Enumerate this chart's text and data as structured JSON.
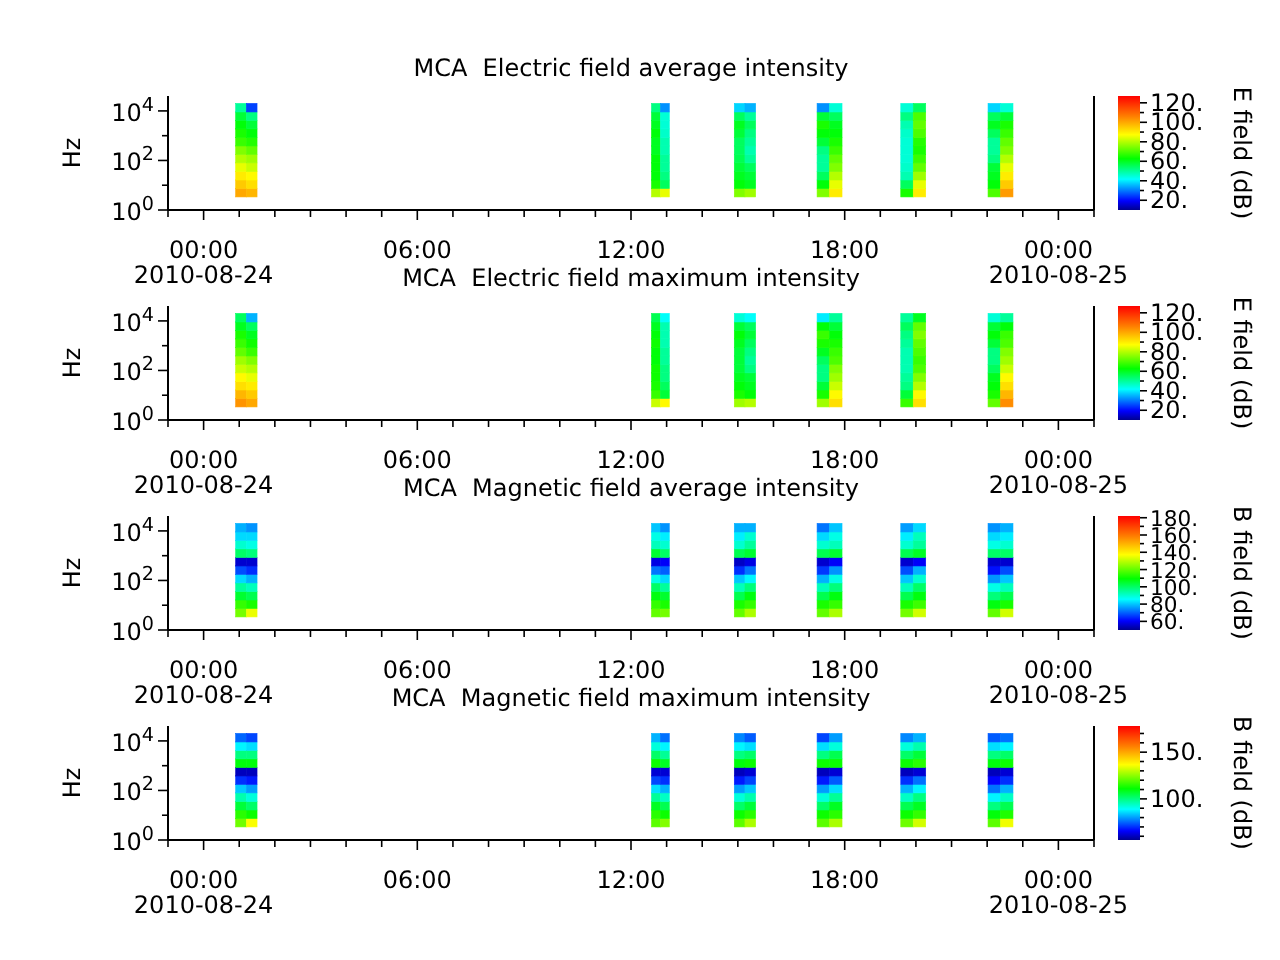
{
  "chart_data": [
    {
      "type": "scatter",
      "title": "MCA  Electric field average intensity",
      "ylabel": "Hz",
      "clabel": "E field (dB)",
      "log": "y",
      "marker": "square",
      "xlim": [
        -1,
        25
      ],
      "xticks": [
        {
          "value": -1,
          "label": null
        },
        {
          "value": 0,
          "label": "00:00\n2010-08-24"
        },
        {
          "value": 1,
          "label": null
        },
        {
          "value": 2,
          "label": null
        },
        {
          "value": 3,
          "label": null
        },
        {
          "value": 4,
          "label": null
        },
        {
          "value": 5,
          "label": null
        },
        {
          "value": 6,
          "label": "06:00"
        },
        {
          "value": 7,
          "label": null
        },
        {
          "value": 8,
          "label": null
        },
        {
          "value": 9,
          "label": null
        },
        {
          "value": 10,
          "label": null
        },
        {
          "value": 11,
          "label": null
        },
        {
          "value": 12,
          "label": "12:00"
        },
        {
          "value": 13,
          "label": null
        },
        {
          "value": 14,
          "label": null
        },
        {
          "value": 15,
          "label": null
        },
        {
          "value": 16,
          "label": null
        },
        {
          "value": 17,
          "label": null
        },
        {
          "value": 18,
          "label": "18:00"
        },
        {
          "value": 19,
          "label": null
        },
        {
          "value": 20,
          "label": null
        },
        {
          "value": 21,
          "label": null
        },
        {
          "value": 22,
          "label": null
        },
        {
          "value": 23,
          "label": null
        },
        {
          "value": 24,
          "label": "00:00\n2010-08-25"
        },
        {
          "value": 25,
          "label": null
        }
      ],
      "ylim": [
        1,
        40000
      ],
      "yticks": [
        {
          "value": 1,
          "label": "10$^{0}$"
        },
        {
          "value": 10,
          "label": null
        },
        {
          "value": 100,
          "label": "10$^{2}$"
        },
        {
          "value": 1000,
          "label": null
        },
        {
          "value": 10000,
          "label": "10$^{4}$"
        }
      ],
      "clim": [
        10,
        127
      ],
      "cticks": [
        {
          "value": 20,
          "label": "20."
        },
        {
          "value": 30,
          "label": null
        },
        {
          "value": 40,
          "label": "40."
        },
        {
          "value": 50,
          "label": null
        },
        {
          "value": 60,
          "label": "60."
        },
        {
          "value": 70,
          "label": null
        },
        {
          "value": 80,
          "label": "80."
        },
        {
          "value": 90,
          "label": null
        },
        {
          "value": 100,
          "label": "100."
        },
        {
          "value": 110,
          "label": null
        },
        {
          "value": 120,
          "label": "120."
        }
      ],
      "x": [
        1.05,
        1.05,
        1.05,
        1.05,
        1.05,
        1.05,
        1.05,
        1.05,
        1.05,
        1.05,
        1.05,
        1.35,
        1.35,
        1.35,
        1.35,
        1.35,
        1.35,
        1.35,
        1.35,
        1.35,
        1.35,
        1.35,
        12.7,
        12.7,
        12.7,
        12.7,
        12.7,
        12.7,
        12.7,
        12.7,
        12.7,
        12.7,
        12.7,
        12.95,
        12.95,
        12.95,
        12.95,
        12.95,
        12.95,
        12.95,
        12.95,
        12.95,
        12.95,
        12.95,
        15.05,
        15.05,
        15.05,
        15.05,
        15.05,
        15.05,
        15.05,
        15.05,
        15.05,
        15.05,
        15.05,
        15.35,
        15.35,
        15.35,
        15.35,
        15.35,
        15.35,
        15.35,
        15.35,
        15.35,
        15.35,
        15.35,
        17.4,
        17.4,
        17.4,
        17.4,
        17.4,
        17.4,
        17.4,
        17.4,
        17.4,
        17.4,
        17.4,
        17.75,
        17.75,
        17.75,
        17.75,
        17.75,
        17.75,
        17.75,
        17.75,
        17.75,
        17.75,
        17.75,
        19.75,
        19.75,
        19.75,
        19.75,
        19.75,
        19.75,
        19.75,
        19.75,
        19.75,
        19.75,
        19.75,
        20.1,
        20.1,
        20.1,
        20.1,
        20.1,
        20.1,
        20.1,
        20.1,
        20.1,
        20.1,
        20.1,
        22.2,
        22.2,
        22.2,
        22.2,
        22.2,
        22.2,
        22.2,
        22.2,
        22.2,
        22.2,
        22.2,
        22.55,
        22.55,
        22.55,
        22.55,
        22.55,
        22.55,
        22.55,
        22.55,
        22.55,
        22.55,
        22.55
      ],
      "values": [
        5,
        11,
        24,
        53,
        120,
        260,
        570,
        1260,
        2800,
        6100,
        13500,
        5,
        11,
        24,
        53,
        120,
        260,
        570,
        1260,
        2800,
        6100,
        13500,
        5,
        11,
        24,
        53,
        120,
        260,
        570,
        1260,
        2800,
        6100,
        13500,
        5,
        11,
        24,
        53,
        120,
        260,
        570,
        1260,
        2800,
        6100,
        13500,
        5,
        11,
        24,
        53,
        120,
        260,
        570,
        1260,
        2800,
        6100,
        13500,
        5,
        11,
        24,
        53,
        120,
        260,
        570,
        1260,
        2800,
        6100,
        13500,
        5,
        11,
        24,
        53,
        120,
        260,
        570,
        1260,
        2800,
        6100,
        13500,
        5,
        11,
        24,
        53,
        120,
        260,
        570,
        1260,
        2800,
        6100,
        13500,
        5,
        11,
        24,
        53,
        120,
        260,
        570,
        1260,
        2800,
        6100,
        13500,
        5,
        11,
        24,
        53,
        120,
        260,
        570,
        1260,
        2800,
        6100,
        13500,
        5,
        11,
        24,
        53,
        120,
        260,
        570,
        1260,
        2800,
        6100,
        13500,
        5,
        11,
        24,
        53,
        120,
        260,
        570,
        1260,
        2800,
        6100,
        13500
      ],
      "cvalues": [
        100,
        95,
        90,
        85,
        80,
        75,
        68,
        65,
        62,
        58,
        50,
        98,
        92,
        88,
        82,
        78,
        72,
        66,
        62,
        58,
        52,
        25,
        80,
        65,
        62,
        62,
        62,
        60,
        60,
        62,
        60,
        58,
        52,
        85,
        55,
        52,
        50,
        50,
        48,
        48,
        46,
        45,
        45,
        32,
        75,
        62,
        60,
        58,
        56,
        55,
        55,
        58,
        60,
        55,
        38,
        78,
        60,
        58,
        55,
        50,
        48,
        50,
        52,
        55,
        50,
        35,
        75,
        62,
        55,
        50,
        50,
        52,
        58,
        62,
        65,
        58,
        32,
        90,
        85,
        80,
        75,
        72,
        68,
        65,
        62,
        60,
        55,
        45,
        65,
        55,
        48,
        46,
        45,
        45,
        45,
        46,
        48,
        52,
        45,
        90,
        85,
        78,
        72,
        68,
        65,
        66,
        70,
        72,
        70,
        55,
        70,
        62,
        60,
        58,
        52,
        50,
        50,
        55,
        60,
        55,
        38,
        102,
        95,
        90,
        85,
        80,
        75,
        72,
        68,
        65,
        58,
        45
      ]
    },
    {
      "type": "scatter",
      "title": "MCA  Electric field maximum intensity",
      "ylabel": "Hz",
      "clabel": "E field (dB)",
      "log": "y",
      "marker": "square",
      "xlim": [
        -1,
        25
      ],
      "xticks": [
        {
          "value": -1,
          "label": null
        },
        {
          "value": 0,
          "label": "00:00\n2010-08-24"
        },
        {
          "value": 1,
          "label": null
        },
        {
          "value": 2,
          "label": null
        },
        {
          "value": 3,
          "label": null
        },
        {
          "value": 4,
          "label": null
        },
        {
          "value": 5,
          "label": null
        },
        {
          "value": 6,
          "label": "06:00"
        },
        {
          "value": 7,
          "label": null
        },
        {
          "value": 8,
          "label": null
        },
        {
          "value": 9,
          "label": null
        },
        {
          "value": 10,
          "label": null
        },
        {
          "value": 11,
          "label": null
        },
        {
          "value": 12,
          "label": "12:00"
        },
        {
          "value": 13,
          "label": null
        },
        {
          "value": 14,
          "label": null
        },
        {
          "value": 15,
          "label": null
        },
        {
          "value": 16,
          "label": null
        },
        {
          "value": 17,
          "label": null
        },
        {
          "value": 18,
          "label": "18:00"
        },
        {
          "value": 19,
          "label": null
        },
        {
          "value": 20,
          "label": null
        },
        {
          "value": 21,
          "label": null
        },
        {
          "value": 22,
          "label": null
        },
        {
          "value": 23,
          "label": null
        },
        {
          "value": 24,
          "label": "00:00\n2010-08-25"
        },
        {
          "value": 25,
          "label": null
        }
      ],
      "ylim": [
        1,
        40000
      ],
      "yticks": [
        {
          "value": 1,
          "label": "10$^{0}$"
        },
        {
          "value": 10,
          "label": null
        },
        {
          "value": 100,
          "label": "10$^{2}$"
        },
        {
          "value": 1000,
          "label": null
        },
        {
          "value": 10000,
          "label": "10$^{4}$"
        }
      ],
      "clim": [
        10,
        127
      ],
      "cticks": [
        {
          "value": 20,
          "label": "20."
        },
        {
          "value": 30,
          "label": null
        },
        {
          "value": 40,
          "label": "40."
        },
        {
          "value": 50,
          "label": null
        },
        {
          "value": 60,
          "label": "60."
        },
        {
          "value": 70,
          "label": null
        },
        {
          "value": 80,
          "label": "80."
        },
        {
          "value": 90,
          "label": null
        },
        {
          "value": 100,
          "label": "100."
        },
        {
          "value": 110,
          "label": null
        },
        {
          "value": 120,
          "label": "120."
        }
      ],
      "x": [
        1.05,
        1.05,
        1.05,
        1.05,
        1.05,
        1.05,
        1.05,
        1.05,
        1.05,
        1.05,
        1.05,
        1.35,
        1.35,
        1.35,
        1.35,
        1.35,
        1.35,
        1.35,
        1.35,
        1.35,
        1.35,
        1.35,
        12.7,
        12.7,
        12.7,
        12.7,
        12.7,
        12.7,
        12.7,
        12.7,
        12.7,
        12.7,
        12.7,
        12.95,
        12.95,
        12.95,
        12.95,
        12.95,
        12.95,
        12.95,
        12.95,
        12.95,
        12.95,
        12.95,
        15.05,
        15.05,
        15.05,
        15.05,
        15.05,
        15.05,
        15.05,
        15.05,
        15.05,
        15.05,
        15.05,
        15.35,
        15.35,
        15.35,
        15.35,
        15.35,
        15.35,
        15.35,
        15.35,
        15.35,
        15.35,
        15.35,
        17.4,
        17.4,
        17.4,
        17.4,
        17.4,
        17.4,
        17.4,
        17.4,
        17.4,
        17.4,
        17.4,
        17.75,
        17.75,
        17.75,
        17.75,
        17.75,
        17.75,
        17.75,
        17.75,
        17.75,
        17.75,
        17.75,
        19.75,
        19.75,
        19.75,
        19.75,
        19.75,
        19.75,
        19.75,
        19.75,
        19.75,
        19.75,
        19.75,
        20.1,
        20.1,
        20.1,
        20.1,
        20.1,
        20.1,
        20.1,
        20.1,
        20.1,
        20.1,
        20.1,
        22.2,
        22.2,
        22.2,
        22.2,
        22.2,
        22.2,
        22.2,
        22.2,
        22.2,
        22.2,
        22.2,
        22.55,
        22.55,
        22.55,
        22.55,
        22.55,
        22.55,
        22.55,
        22.55,
        22.55,
        22.55,
        22.55
      ],
      "values": [
        5,
        11,
        24,
        53,
        120,
        260,
        570,
        1260,
        2800,
        6100,
        13500,
        5,
        11,
        24,
        53,
        120,
        260,
        570,
        1260,
        2800,
        6100,
        13500,
        5,
        11,
        24,
        53,
        120,
        260,
        570,
        1260,
        2800,
        6100,
        13500,
        5,
        11,
        24,
        53,
        120,
        260,
        570,
        1260,
        2800,
        6100,
        13500,
        5,
        11,
        24,
        53,
        120,
        260,
        570,
        1260,
        2800,
        6100,
        13500,
        5,
        11,
        24,
        53,
        120,
        260,
        570,
        1260,
        2800,
        6100,
        13500,
        5,
        11,
        24,
        53,
        120,
        260,
        570,
        1260,
        2800,
        6100,
        13500,
        5,
        11,
        24,
        53,
        120,
        260,
        570,
        1260,
        2800,
        6100,
        13500,
        5,
        11,
        24,
        53,
        120,
        260,
        570,
        1260,
        2800,
        6100,
        13500,
        5,
        11,
        24,
        53,
        120,
        260,
        570,
        1260,
        2800,
        6100,
        13500,
        5,
        11,
        24,
        53,
        120,
        260,
        570,
        1260,
        2800,
        6100,
        13500,
        5,
        11,
        24,
        53,
        120,
        260,
        570,
        1260,
        2800,
        6100,
        13500
      ],
      "cvalues": [
        103,
        98,
        92,
        88,
        82,
        78,
        72,
        68,
        65,
        60,
        55,
        100,
        95,
        90,
        85,
        80,
        75,
        68,
        64,
        60,
        55,
        35,
        82,
        68,
        65,
        64,
        64,
        62,
        62,
        64,
        62,
        60,
        56,
        88,
        58,
        55,
        52,
        52,
        50,
        50,
        48,
        48,
        48,
        42,
        78,
        65,
        62,
        60,
        58,
        58,
        58,
        60,
        62,
        58,
        45,
        80,
        62,
        60,
        58,
        52,
        50,
        52,
        55,
        58,
        55,
        42,
        78,
        65,
        58,
        52,
        52,
        55,
        60,
        65,
        68,
        62,
        40,
        92,
        88,
        82,
        78,
        75,
        70,
        68,
        65,
        62,
        58,
        50,
        68,
        58,
        52,
        50,
        48,
        48,
        48,
        50,
        52,
        55,
        50,
        92,
        88,
        80,
        75,
        70,
        68,
        70,
        72,
        75,
        72,
        60,
        72,
        65,
        62,
        60,
        55,
        52,
        52,
        58,
        62,
        58,
        45,
        104,
        98,
        92,
        88,
        82,
        78,
        75,
        70,
        68,
        62,
        50
      ]
    },
    {
      "type": "scatter",
      "title": "MCA  Magnetic field average intensity",
      "ylabel": "Hz",
      "clabel": "B field (dB)",
      "log": "y",
      "marker": "square",
      "xlim": [
        -1,
        25
      ],
      "xticks": [
        {
          "value": -1,
          "label": null
        },
        {
          "value": 0,
          "label": "00:00\n2010-08-24"
        },
        {
          "value": 1,
          "label": null
        },
        {
          "value": 2,
          "label": null
        },
        {
          "value": 3,
          "label": null
        },
        {
          "value": 4,
          "label": null
        },
        {
          "value": 5,
          "label": null
        },
        {
          "value": 6,
          "label": "06:00"
        },
        {
          "value": 7,
          "label": null
        },
        {
          "value": 8,
          "label": null
        },
        {
          "value": 9,
          "label": null
        },
        {
          "value": 10,
          "label": null
        },
        {
          "value": 11,
          "label": null
        },
        {
          "value": 12,
          "label": "12:00"
        },
        {
          "value": 13,
          "label": null
        },
        {
          "value": 14,
          "label": null
        },
        {
          "value": 15,
          "label": null
        },
        {
          "value": 16,
          "label": null
        },
        {
          "value": 17,
          "label": null
        },
        {
          "value": 18,
          "label": "18:00"
        },
        {
          "value": 19,
          "label": null
        },
        {
          "value": 20,
          "label": null
        },
        {
          "value": 21,
          "label": null
        },
        {
          "value": 22,
          "label": null
        },
        {
          "value": 23,
          "label": null
        },
        {
          "value": 24,
          "label": "00:00\n2010-08-25"
        },
        {
          "value": 25,
          "label": null
        }
      ],
      "ylim": [
        1,
        40000
      ],
      "yticks": [
        {
          "value": 1,
          "label": "10$^{0}$"
        },
        {
          "value": 10,
          "label": null
        },
        {
          "value": 100,
          "label": "10$^{2}$"
        },
        {
          "value": 1000,
          "label": null
        },
        {
          "value": 10000,
          "label": "10$^{4}$"
        }
      ],
      "clim": [
        50,
        182
      ],
      "cticks": [
        {
          "value": 60,
          "label": "60."
        },
        {
          "value": 70,
          "label": null
        },
        {
          "value": 80,
          "label": "80."
        },
        {
          "value": 90,
          "label": null
        },
        {
          "value": 100,
          "label": "100."
        },
        {
          "value": 110,
          "label": null
        },
        {
          "value": 120,
          "label": "120."
        },
        {
          "value": 130,
          "label": null
        },
        {
          "value": 140,
          "label": "140."
        },
        {
          "value": 150,
          "label": null
        },
        {
          "value": 160,
          "label": "160."
        },
        {
          "value": 170,
          "label": null
        },
        {
          "value": 180,
          "label": "180."
        }
      ],
      "x": [
        1.05,
        1.05,
        1.05,
        1.05,
        1.05,
        1.05,
        1.05,
        1.05,
        1.05,
        1.05,
        1.05,
        1.35,
        1.35,
        1.35,
        1.35,
        1.35,
        1.35,
        1.35,
        1.35,
        1.35,
        1.35,
        1.35,
        12.7,
        12.7,
        12.7,
        12.7,
        12.7,
        12.7,
        12.7,
        12.7,
        12.7,
        12.7,
        12.7,
        12.95,
        12.95,
        12.95,
        12.95,
        12.95,
        12.95,
        12.95,
        12.95,
        12.95,
        12.95,
        12.95,
        15.05,
        15.05,
        15.05,
        15.05,
        15.05,
        15.05,
        15.05,
        15.05,
        15.05,
        15.05,
        15.05,
        15.35,
        15.35,
        15.35,
        15.35,
        15.35,
        15.35,
        15.35,
        15.35,
        15.35,
        15.35,
        15.35,
        17.4,
        17.4,
        17.4,
        17.4,
        17.4,
        17.4,
        17.4,
        17.4,
        17.4,
        17.4,
        17.4,
        17.75,
        17.75,
        17.75,
        17.75,
        17.75,
        17.75,
        17.75,
        17.75,
        17.75,
        17.75,
        17.75,
        19.75,
        19.75,
        19.75,
        19.75,
        19.75,
        19.75,
        19.75,
        19.75,
        19.75,
        19.75,
        19.75,
        20.1,
        20.1,
        20.1,
        20.1,
        20.1,
        20.1,
        20.1,
        20.1,
        20.1,
        20.1,
        20.1,
        22.2,
        22.2,
        22.2,
        22.2,
        22.2,
        22.2,
        22.2,
        22.2,
        22.2,
        22.2,
        22.2,
        22.55,
        22.55,
        22.55,
        22.55,
        22.55,
        22.55,
        22.55,
        22.55,
        22.55,
        22.55,
        22.55
      ],
      "values": [
        5,
        11,
        24,
        53,
        120,
        260,
        570,
        1260,
        2800,
        6100,
        13500,
        5,
        11,
        24,
        53,
        120,
        260,
        570,
        1260,
        2800,
        6100,
        13500,
        5,
        11,
        24,
        53,
        120,
        260,
        570,
        1260,
        2800,
        6100,
        13500,
        5,
        11,
        24,
        53,
        120,
        260,
        570,
        1260,
        2800,
        6100,
        13500,
        5,
        11,
        24,
        53,
        120,
        260,
        570,
        1260,
        2800,
        6100,
        13500,
        5,
        11,
        24,
        53,
        120,
        260,
        570,
        1260,
        2800,
        6100,
        13500,
        5,
        11,
        24,
        53,
        120,
        260,
        570,
        1260,
        2800,
        6100,
        13500,
        5,
        11,
        24,
        53,
        120,
        260,
        570,
        1260,
        2800,
        6100,
        13500,
        5,
        11,
        24,
        53,
        120,
        260,
        570,
        1260,
        2800,
        6100,
        13500,
        5,
        11,
        24,
        53,
        120,
        260,
        570,
        1260,
        2800,
        6100,
        13500,
        5,
        11,
        24,
        53,
        120,
        260,
        570,
        1260,
        2800,
        6100,
        13500,
        5,
        11,
        24,
        53,
        120,
        260,
        570,
        1260,
        2800,
        6100,
        13500
      ],
      "cvalues": [
        122,
        115,
        105,
        95,
        82,
        68,
        56,
        100,
        90,
        82,
        78,
        135,
        112,
        102,
        92,
        78,
        65,
        56,
        98,
        88,
        82,
        75,
        120,
        115,
        108,
        100,
        88,
        72,
        58,
        105,
        92,
        88,
        80,
        122,
        112,
        105,
        95,
        82,
        70,
        60,
        100,
        90,
        84,
        75,
        120,
        112,
        102,
        92,
        80,
        65,
        55,
        102,
        90,
        84,
        78,
        128,
        115,
        108,
        98,
        85,
        72,
        58,
        105,
        95,
        90,
        78,
        120,
        112,
        102,
        92,
        78,
        66,
        56,
        102,
        90,
        82,
        72,
        128,
        115,
        108,
        98,
        88,
        75,
        60,
        105,
        92,
        88,
        80,
        122,
        112,
        102,
        92,
        80,
        68,
        56,
        102,
        90,
        84,
        76,
        132,
        116,
        108,
        100,
        90,
        78,
        60,
        106,
        95,
        92,
        82,
        120,
        108,
        98,
        88,
        75,
        62,
        56,
        100,
        88,
        82,
        75,
        132,
        112,
        102,
        92,
        80,
        68,
        56,
        100,
        90,
        84,
        78
      ]
    },
    {
      "type": "scatter",
      "title": "MCA  Magnetic field maximum intensity",
      "ylabel": "Hz",
      "clabel": "B field (dB)",
      "log": "y",
      "marker": "square",
      "xlim": [
        -1,
        25
      ],
      "xticks": [
        {
          "value": -1,
          "label": null
        },
        {
          "value": 0,
          "label": "00:00\n2010-08-24"
        },
        {
          "value": 1,
          "label": null
        },
        {
          "value": 2,
          "label": null
        },
        {
          "value": 3,
          "label": null
        },
        {
          "value": 4,
          "label": null
        },
        {
          "value": 5,
          "label": null
        },
        {
          "value": 6,
          "label": "06:00"
        },
        {
          "value": 7,
          "label": null
        },
        {
          "value": 8,
          "label": null
        },
        {
          "value": 9,
          "label": null
        },
        {
          "value": 10,
          "label": null
        },
        {
          "value": 11,
          "label": null
        },
        {
          "value": 12,
          "label": "12:00"
        },
        {
          "value": 13,
          "label": null
        },
        {
          "value": 14,
          "label": null
        },
        {
          "value": 15,
          "label": null
        },
        {
          "value": 16,
          "label": null
        },
        {
          "value": 17,
          "label": null
        },
        {
          "value": 18,
          "label": "18:00"
        },
        {
          "value": 19,
          "label": null
        },
        {
          "value": 20,
          "label": null
        },
        {
          "value": 21,
          "label": null
        },
        {
          "value": 22,
          "label": null
        },
        {
          "value": 23,
          "label": null
        },
        {
          "value": 24,
          "label": "00:00\n2010-08-25"
        },
        {
          "value": 25,
          "label": null
        }
      ],
      "ylim": [
        1,
        40000
      ],
      "yticks": [
        {
          "value": 1,
          "label": "10$^{0}$"
        },
        {
          "value": 10,
          "label": null
        },
        {
          "value": 100,
          "label": "10$^{2}$"
        },
        {
          "value": 1000,
          "label": null
        },
        {
          "value": 10000,
          "label": "10$^{4}$"
        }
      ],
      "clim": [
        56,
        178
      ],
      "cticks": [
        {
          "value": 60,
          "label": null
        },
        {
          "value": 70,
          "label": null
        },
        {
          "value": 80,
          "label": null
        },
        {
          "value": 90,
          "label": null
        },
        {
          "value": 100,
          "label": "100."
        },
        {
          "value": 110,
          "label": null
        },
        {
          "value": 120,
          "label": null
        },
        {
          "value": 130,
          "label": null
        },
        {
          "value": 140,
          "label": null
        },
        {
          "value": 150,
          "label": "150."
        },
        {
          "value": 160,
          "label": null
        },
        {
          "value": 170,
          "label": null
        }
      ],
      "x": [
        1.05,
        1.05,
        1.05,
        1.05,
        1.05,
        1.05,
        1.05,
        1.05,
        1.05,
        1.05,
        1.05,
        1.35,
        1.35,
        1.35,
        1.35,
        1.35,
        1.35,
        1.35,
        1.35,
        1.35,
        1.35,
        1.35,
        12.7,
        12.7,
        12.7,
        12.7,
        12.7,
        12.7,
        12.7,
        12.7,
        12.7,
        12.7,
        12.7,
        12.95,
        12.95,
        12.95,
        12.95,
        12.95,
        12.95,
        12.95,
        12.95,
        12.95,
        12.95,
        12.95,
        15.05,
        15.05,
        15.05,
        15.05,
        15.05,
        15.05,
        15.05,
        15.05,
        15.05,
        15.05,
        15.05,
        15.35,
        15.35,
        15.35,
        15.35,
        15.35,
        15.35,
        15.35,
        15.35,
        15.35,
        15.35,
        15.35,
        17.4,
        17.4,
        17.4,
        17.4,
        17.4,
        17.4,
        17.4,
        17.4,
        17.4,
        17.4,
        17.4,
        17.75,
        17.75,
        17.75,
        17.75,
        17.75,
        17.75,
        17.75,
        17.75,
        17.75,
        17.75,
        17.75,
        19.75,
        19.75,
        19.75,
        19.75,
        19.75,
        19.75,
        19.75,
        19.75,
        19.75,
        19.75,
        19.75,
        20.1,
        20.1,
        20.1,
        20.1,
        20.1,
        20.1,
        20.1,
        20.1,
        20.1,
        20.1,
        20.1,
        22.2,
        22.2,
        22.2,
        22.2,
        22.2,
        22.2,
        22.2,
        22.2,
        22.2,
        22.2,
        22.2,
        22.55,
        22.55,
        22.55,
        22.55,
        22.55,
        22.55,
        22.55,
        22.55,
        22.55,
        22.55,
        22.55
      ],
      "values": [
        5,
        11,
        24,
        53,
        120,
        260,
        570,
        1260,
        2800,
        6100,
        13500,
        5,
        11,
        24,
        53,
        120,
        260,
        570,
        1260,
        2800,
        6100,
        13500,
        5,
        11,
        24,
        53,
        120,
        260,
        570,
        1260,
        2800,
        6100,
        13500,
        5,
        11,
        24,
        53,
        120,
        260,
        570,
        1260,
        2800,
        6100,
        13500,
        5,
        11,
        24,
        53,
        120,
        260,
        570,
        1260,
        2800,
        6100,
        13500,
        5,
        11,
        24,
        53,
        120,
        260,
        570,
        1260,
        2800,
        6100,
        13500,
        5,
        11,
        24,
        53,
        120,
        260,
        570,
        1260,
        2800,
        6100,
        13500,
        5,
        11,
        24,
        53,
        120,
        260,
        570,
        1260,
        2800,
        6100,
        13500,
        5,
        11,
        24,
        53,
        120,
        260,
        570,
        1260,
        2800,
        6100,
        13500,
        5,
        11,
        24,
        53,
        120,
        260,
        570,
        1260,
        2800,
        6100,
        13500,
        5,
        11,
        24,
        53,
        120,
        260,
        570,
        1260,
        2800,
        6100,
        13500,
        5,
        11,
        24,
        53,
        120,
        260,
        570,
        1260,
        2800,
        6100,
        13500
      ],
      "cvalues": [
        122,
        115,
        106,
        96,
        84,
        70,
        60,
        110,
        100,
        88,
        75,
        136,
        112,
        102,
        92,
        80,
        68,
        60,
        110,
        100,
        86,
        72,
        120,
        115,
        108,
        98,
        86,
        72,
        62,
        112,
        102,
        92,
        82,
        124,
        112,
        104,
        94,
        82,
        70,
        62,
        108,
        98,
        88,
        76,
        120,
        112,
        102,
        92,
        80,
        68,
        60,
        110,
        100,
        88,
        78,
        128,
        115,
        106,
        96,
        84,
        72,
        62,
        112,
        102,
        86,
        74,
        120,
        112,
        102,
        92,
        80,
        68,
        60,
        112,
        100,
        86,
        72,
        128,
        115,
        108,
        98,
        86,
        74,
        62,
        112,
        104,
        92,
        80,
        122,
        112,
        104,
        94,
        82,
        70,
        60,
        112,
        102,
        92,
        78,
        132,
        116,
        108,
        100,
        88,
        76,
        62,
        115,
        106,
        96,
        82,
        120,
        110,
        100,
        88,
        76,
        66,
        60,
        110,
        100,
        86,
        74,
        135,
        114,
        104,
        94,
        82,
        70,
        62,
        112,
        102,
        88,
        76
      ]
    }
  ]
}
